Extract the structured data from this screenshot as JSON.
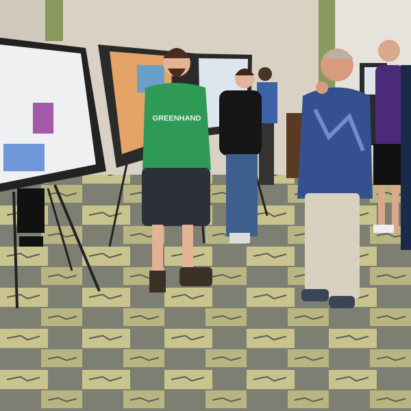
{
  "scene": {
    "shirt_text": "GREENHAND"
  }
}
